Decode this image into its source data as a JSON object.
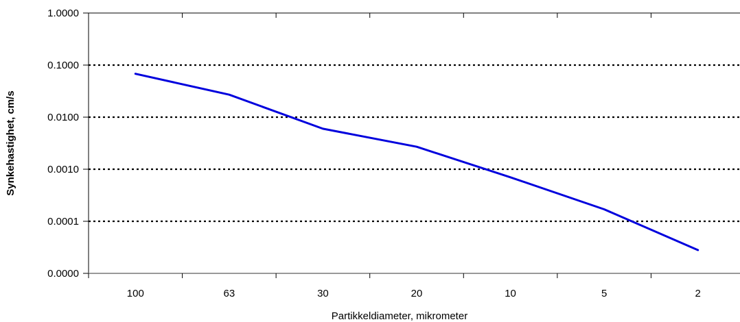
{
  "chart_data": {
    "type": "line",
    "categories": [
      "100",
      "63",
      "30",
      "20",
      "10",
      "5",
      "2"
    ],
    "series": [
      {
        "values": [
          0.068,
          0.027,
          0.006,
          0.0027,
          0.0007,
          0.00017,
          2.8e-05
        ]
      }
    ],
    "xlabel": "Partikkeldiameter, mikrometer",
    "ylabel": "Synkehastighet, cm/s",
    "y_scale": "log",
    "ylim": [
      1e-05,
      1
    ],
    "y_tick_values": [
      1e-05,
      0.0001,
      0.001,
      0.01,
      0.1,
      1
    ],
    "y_tick_labels": [
      "0.0000",
      "0.0001",
      "0.0010",
      "0.0100",
      "0.1000",
      "1.0000"
    ],
    "grid": "horizontal dotted",
    "legend": "none",
    "colors": {
      "line": "#0000dd",
      "grid": "#000000",
      "axis": "#000000",
      "baseline": "#999999"
    }
  }
}
